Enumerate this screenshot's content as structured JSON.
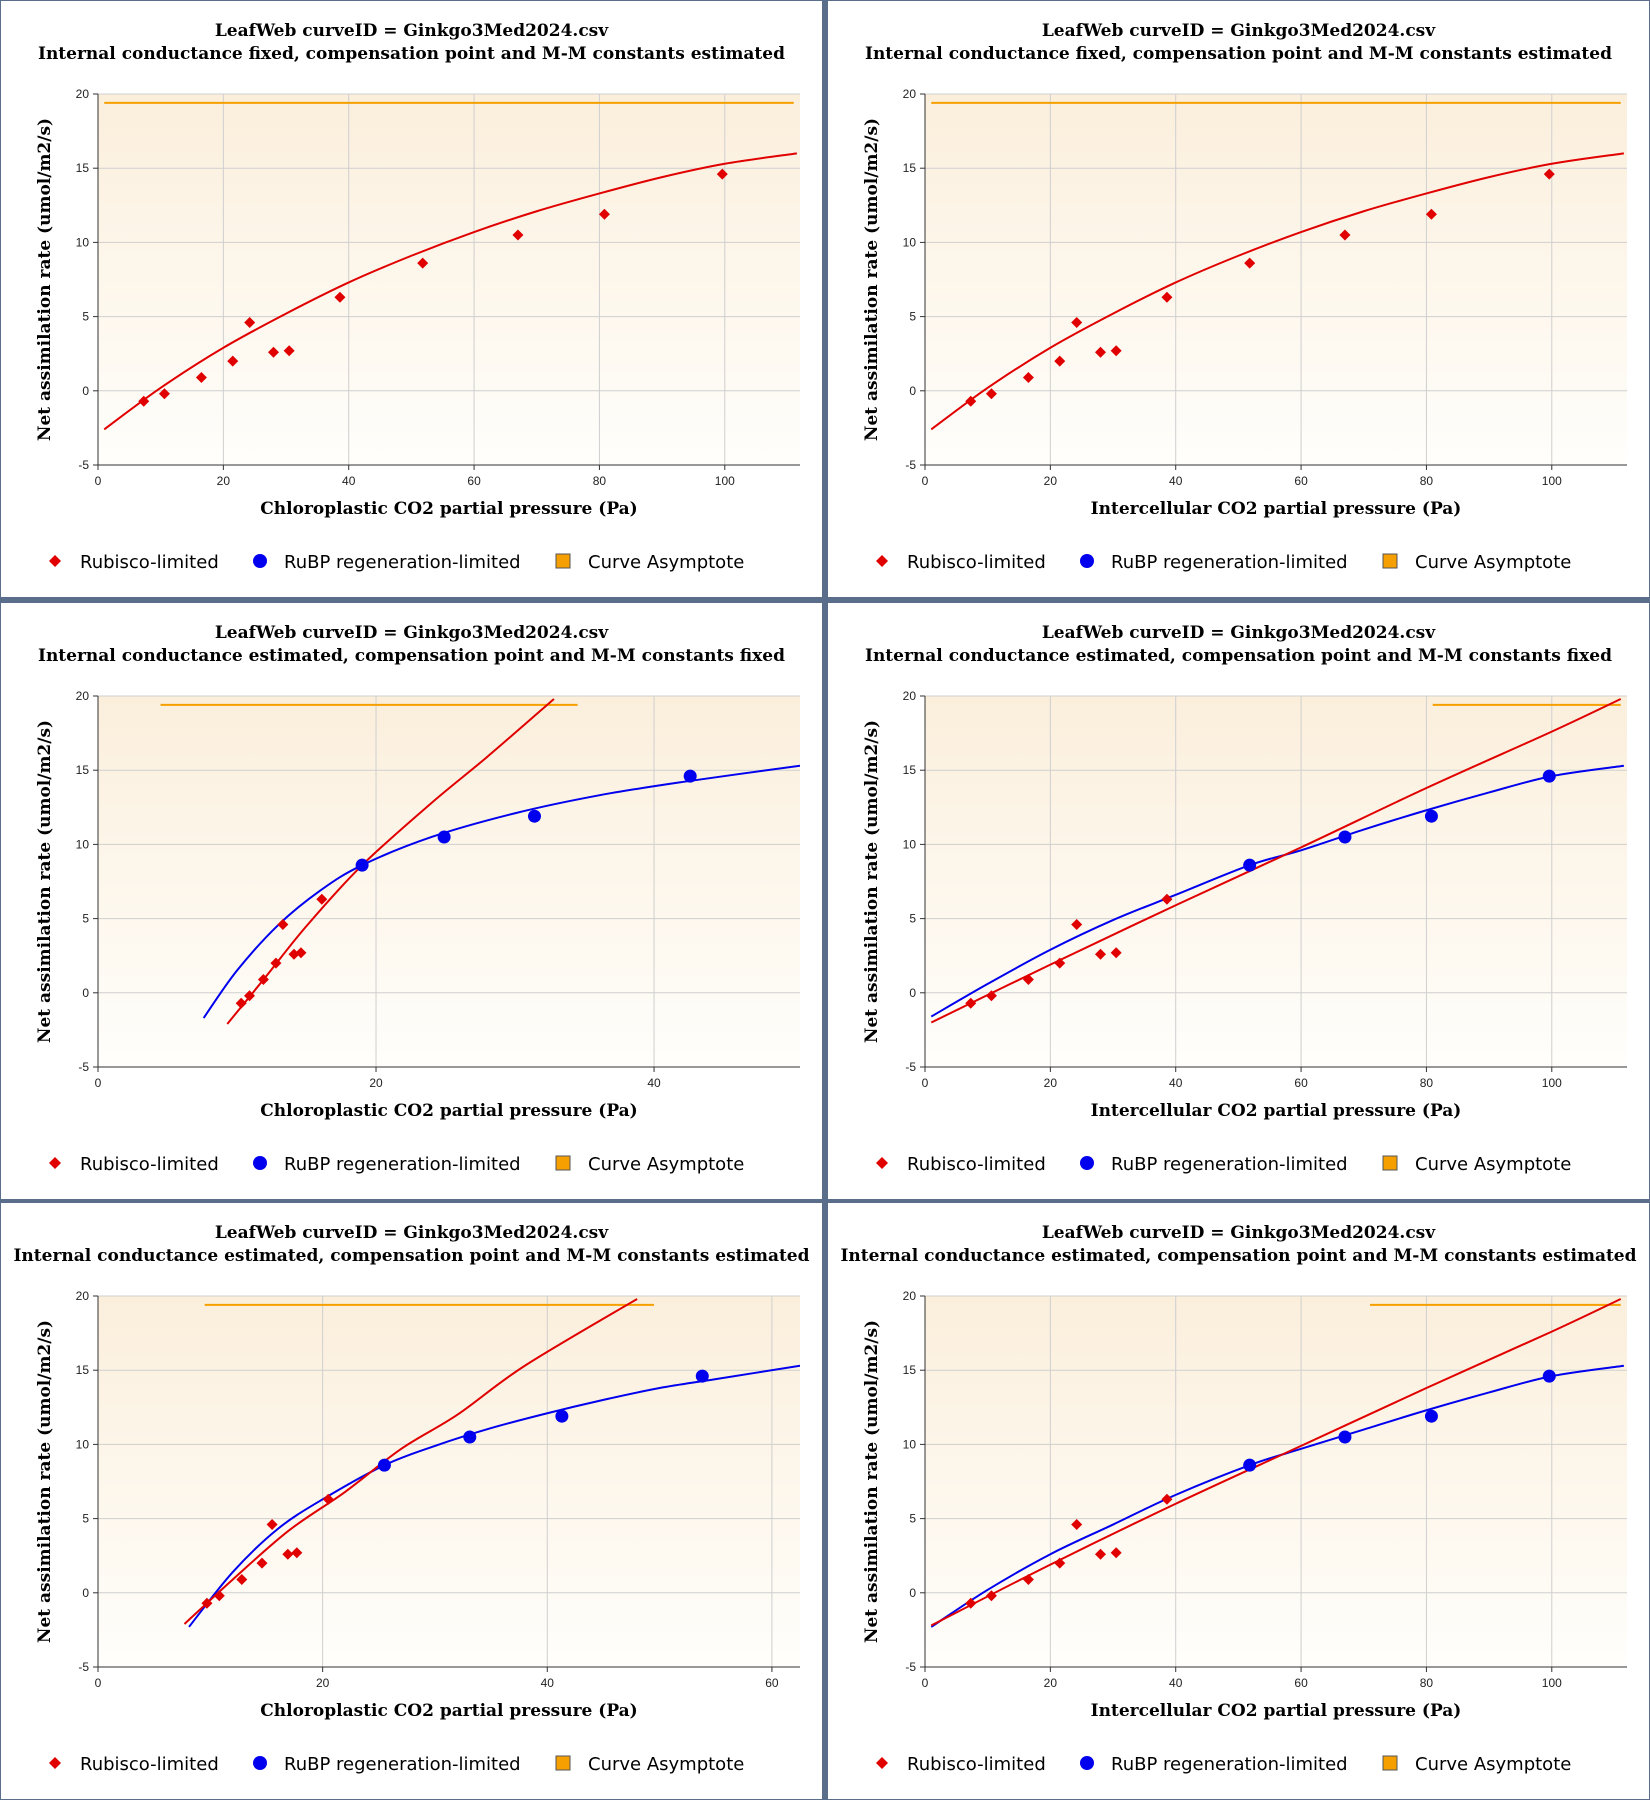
{
  "colors": {
    "rubisco": "#e00000",
    "rubp": "#0000ee",
    "asymptote": "#f5a000",
    "plot_bg_top": "#fbefdc",
    "plot_bg_bottom": "#fffefb",
    "grid": "#cfcfcf"
  },
  "legend": {
    "rubisco_label": "Rubisco-limited",
    "rubp_label": "RuBP regeneration-limited",
    "asymptote_label": "Curve Asymptote"
  },
  "chart_data": [
    {
      "type": "scatter",
      "title": "LeafWeb curveID = Ginkgo3Med2024.csv",
      "subtitle": "Internal conductance fixed, compensation point and M-M constants estimated",
      "xlabel": "Chloroplastic CO2 partial pressure (Pa)",
      "ylabel": "Net assimilation rate (umol/m2/s)",
      "xlim": [
        0,
        112
      ],
      "ylim": [
        -5,
        20
      ],
      "xticks": [
        0,
        20,
        40,
        60,
        80,
        100
      ],
      "yticks": [
        -5,
        0,
        5,
        10,
        15,
        20
      ],
      "grid": true,
      "legend_position": "bottom",
      "rubisco_points": [
        [
          7.3,
          -0.7
        ],
        [
          10.6,
          -0.2
        ],
        [
          16.5,
          0.9
        ],
        [
          21.5,
          2.0
        ],
        [
          24.2,
          4.6
        ],
        [
          28.0,
          2.6
        ],
        [
          30.5,
          2.7
        ],
        [
          38.6,
          6.3
        ],
        [
          51.8,
          8.6
        ],
        [
          67.0,
          10.5
        ],
        [
          80.8,
          11.9
        ],
        [
          99.6,
          14.6
        ]
      ],
      "rubp_points": [],
      "rubisco_curve": [
        [
          1,
          -2.6
        ],
        [
          10,
          0.2
        ],
        [
          20,
          2.9
        ],
        [
          30,
          5.2
        ],
        [
          40,
          7.3
        ],
        [
          50,
          9.1
        ],
        [
          60,
          10.7
        ],
        [
          70,
          12.1
        ],
        [
          80,
          13.3
        ],
        [
          90,
          14.4
        ],
        [
          100,
          15.3
        ],
        [
          111.5,
          16.0
        ]
      ],
      "rubp_curve": [],
      "asymptote": {
        "y": 19.4,
        "x_range": [
          1,
          111
        ]
      }
    },
    {
      "type": "scatter",
      "title": "LeafWeb curveID = Ginkgo3Med2024.csv",
      "subtitle": "Internal conductance fixed, compensation point and M-M constants estimated",
      "xlabel": "Intercellular CO2 partial pressure (Pa)",
      "ylabel": "Net assimilation rate (umol/m2/s)",
      "xlim": [
        0,
        112
      ],
      "ylim": [
        -5,
        20
      ],
      "xticks": [
        0,
        20,
        40,
        60,
        80,
        100
      ],
      "yticks": [
        -5,
        0,
        5,
        10,
        15,
        20
      ],
      "grid": true,
      "legend_position": "bottom",
      "rubisco_points": [
        [
          7.3,
          -0.7
        ],
        [
          10.6,
          -0.2
        ],
        [
          16.5,
          0.9
        ],
        [
          21.5,
          2.0
        ],
        [
          24.2,
          4.6
        ],
        [
          28.0,
          2.6
        ],
        [
          30.5,
          2.7
        ],
        [
          38.6,
          6.3
        ],
        [
          51.8,
          8.6
        ],
        [
          67.0,
          10.5
        ],
        [
          80.8,
          11.9
        ],
        [
          99.6,
          14.6
        ]
      ],
      "rubp_points": [],
      "rubisco_curve": [
        [
          1,
          -2.6
        ],
        [
          10,
          0.2
        ],
        [
          20,
          2.9
        ],
        [
          30,
          5.2
        ],
        [
          40,
          7.3
        ],
        [
          50,
          9.1
        ],
        [
          60,
          10.7
        ],
        [
          70,
          12.1
        ],
        [
          80,
          13.3
        ],
        [
          90,
          14.4
        ],
        [
          100,
          15.3
        ],
        [
          111.5,
          16.0
        ]
      ],
      "rubp_curve": [],
      "asymptote": {
        "y": 19.4,
        "x_range": [
          1,
          111
        ]
      }
    },
    {
      "type": "scatter",
      "title": "LeafWeb curveID = Ginkgo3Med2024.csv",
      "subtitle": "Internal conductance estimated, compensation point and M-M constants fixed",
      "xlabel": "Chloroplastic CO2 partial pressure (Pa)",
      "ylabel": "Net assimilation rate (umol/m2/s)",
      "xlim": [
        0,
        50.5
      ],
      "ylim": [
        -5,
        20
      ],
      "xticks": [
        0,
        20,
        40
      ],
      "yticks": [
        -5,
        0,
        5,
        10,
        15,
        20
      ],
      "grid": true,
      "legend_position": "bottom",
      "rubisco_points": [
        [
          10.3,
          -0.7
        ],
        [
          10.9,
          -0.2
        ],
        [
          11.9,
          0.9
        ],
        [
          12.8,
          2.0
        ],
        [
          13.3,
          4.6
        ],
        [
          14.1,
          2.6
        ],
        [
          14.6,
          2.7
        ],
        [
          16.1,
          6.3
        ]
      ],
      "rubp_points": [
        [
          19.0,
          8.6
        ],
        [
          24.9,
          10.5
        ],
        [
          31.4,
          11.9
        ],
        [
          42.6,
          14.6
        ]
      ],
      "rubisco_curve": [
        [
          9.3,
          -2.1
        ],
        [
          12,
          1.0
        ],
        [
          15,
          4.5
        ],
        [
          19,
          8.6
        ],
        [
          24,
          12.8
        ],
        [
          28,
          15.9
        ],
        [
          32.8,
          19.8
        ]
      ],
      "rubp_curve": [
        [
          7.6,
          -1.7
        ],
        [
          10,
          1.5
        ],
        [
          13,
          4.6
        ],
        [
          16,
          6.9
        ],
        [
          19,
          8.6
        ],
        [
          24,
          10.5
        ],
        [
          30,
          12.1
        ],
        [
          36,
          13.3
        ],
        [
          42,
          14.2
        ],
        [
          50.5,
          15.3
        ]
      ],
      "asymptote": {
        "y": 19.4,
        "x_range": [
          4.5,
          34.5
        ]
      }
    },
    {
      "type": "scatter",
      "title": "LeafWeb curveID = Ginkgo3Med2024.csv",
      "subtitle": "Internal conductance estimated, compensation point and M-M constants fixed",
      "xlabel": "Intercellular CO2 partial pressure (Pa)",
      "ylabel": "Net assimilation rate (umol/m2/s)",
      "xlim": [
        0,
        112
      ],
      "ylim": [
        -5,
        20
      ],
      "xticks": [
        0,
        20,
        40,
        60,
        80,
        100
      ],
      "yticks": [
        -5,
        0,
        5,
        10,
        15,
        20
      ],
      "grid": true,
      "legend_position": "bottom",
      "rubisco_points": [
        [
          7.3,
          -0.7
        ],
        [
          10.6,
          -0.2
        ],
        [
          16.5,
          0.9
        ],
        [
          21.5,
          2.0
        ],
        [
          24.2,
          4.6
        ],
        [
          28.0,
          2.6
        ],
        [
          30.5,
          2.7
        ],
        [
          38.6,
          6.3
        ]
      ],
      "rubp_points": [
        [
          51.8,
          8.6
        ],
        [
          67.0,
          10.5
        ],
        [
          80.8,
          11.9
        ],
        [
          99.6,
          14.6
        ]
      ],
      "rubisco_curve": [
        [
          1,
          -2.0
        ],
        [
          20,
          1.9
        ],
        [
          40,
          5.9
        ],
        [
          60,
          9.8
        ],
        [
          80,
          13.8
        ],
        [
          100,
          17.6
        ],
        [
          111,
          19.8
        ]
      ],
      "rubp_curve": [
        [
          1,
          -1.6
        ],
        [
          10,
          0.6
        ],
        [
          20,
          2.9
        ],
        [
          30,
          4.9
        ],
        [
          40,
          6.6
        ],
        [
          51.8,
          8.6
        ],
        [
          60,
          9.6
        ],
        [
          70,
          11.0
        ],
        [
          80,
          12.3
        ],
        [
          90,
          13.5
        ],
        [
          100,
          14.6
        ],
        [
          111.5,
          15.3
        ]
      ],
      "asymptote": {
        "y": 19.4,
        "x_range": [
          81,
          111
        ]
      }
    },
    {
      "type": "scatter",
      "title": "LeafWeb curveID = Ginkgo3Med2024.csv",
      "subtitle": "Internal conductance estimated, compensation point and M-M constants estimated",
      "xlabel": "Chloroplastic CO2 partial pressure (Pa)",
      "ylabel": "Net assimilation rate (umol/m2/s)",
      "xlim": [
        0,
        62.5
      ],
      "ylim": [
        -5,
        20
      ],
      "xticks": [
        0,
        20,
        40,
        60
      ],
      "yticks": [
        -5,
        0,
        5,
        10,
        15,
        20
      ],
      "grid": true,
      "legend_position": "bottom",
      "rubisco_points": [
        [
          9.7,
          -0.7
        ],
        [
          10.8,
          -0.2
        ],
        [
          12.8,
          0.9
        ],
        [
          14.6,
          2.0
        ],
        [
          15.5,
          4.6
        ],
        [
          16.9,
          2.6
        ],
        [
          17.7,
          2.7
        ],
        [
          20.5,
          6.3
        ]
      ],
      "rubp_points": [
        [
          25.5,
          8.6
        ],
        [
          33.1,
          10.5
        ],
        [
          41.3,
          11.9
        ],
        [
          53.8,
          14.6
        ]
      ],
      "rubisco_curve": [
        [
          7.7,
          -2.1
        ],
        [
          12,
          0.9
        ],
        [
          17,
          4.2
        ],
        [
          22,
          6.8
        ],
        [
          27,
          9.7
        ],
        [
          32,
          12.0
        ],
        [
          38,
          15.3
        ],
        [
          48,
          19.8
        ]
      ],
      "rubp_curve": [
        [
          8.1,
          -2.3
        ],
        [
          12,
          1.4
        ],
        [
          16,
          4.3
        ],
        [
          20,
          6.3
        ],
        [
          25.5,
          8.6
        ],
        [
          30,
          9.9
        ],
        [
          35,
          11.1
        ],
        [
          40,
          12.1
        ],
        [
          45,
          13.0
        ],
        [
          50,
          13.8
        ],
        [
          55,
          14.4
        ],
        [
          62.5,
          15.3
        ]
      ],
      "asymptote": {
        "y": 19.4,
        "x_range": [
          9.5,
          49.5
        ]
      }
    },
    {
      "type": "scatter",
      "title": "LeafWeb curveID = Ginkgo3Med2024.csv",
      "subtitle": "Internal conductance estimated, compensation point and M-M constants estimated",
      "xlabel": "Intercellular CO2 partial pressure (Pa)",
      "ylabel": "Net assimilation rate (umol/m2/s)",
      "xlim": [
        0,
        112
      ],
      "ylim": [
        -5,
        20
      ],
      "xticks": [
        0,
        20,
        40,
        60,
        80,
        100
      ],
      "yticks": [
        -5,
        0,
        5,
        10,
        15,
        20
      ],
      "grid": true,
      "legend_position": "bottom",
      "rubisco_points": [
        [
          7.3,
          -0.7
        ],
        [
          10.6,
          -0.2
        ],
        [
          16.5,
          0.9
        ],
        [
          21.5,
          2.0
        ],
        [
          24.2,
          4.6
        ],
        [
          28.0,
          2.6
        ],
        [
          30.5,
          2.7
        ],
        [
          38.6,
          6.3
        ]
      ],
      "rubp_points": [
        [
          51.8,
          8.6
        ],
        [
          67.0,
          10.5
        ],
        [
          80.8,
          11.9
        ],
        [
          99.6,
          14.6
        ]
      ],
      "rubisco_curve": [
        [
          1,
          -2.2
        ],
        [
          20,
          1.9
        ],
        [
          40,
          6.0
        ],
        [
          60,
          9.9
        ],
        [
          80,
          13.8
        ],
        [
          100,
          17.6
        ],
        [
          111,
          19.8
        ]
      ],
      "rubp_curve": [
        [
          1,
          -2.3
        ],
        [
          10,
          0.2
        ],
        [
          20,
          2.6
        ],
        [
          30,
          4.6
        ],
        [
          40,
          6.6
        ],
        [
          51.8,
          8.6
        ],
        [
          60,
          9.7
        ],
        [
          70,
          11.0
        ],
        [
          80,
          12.3
        ],
        [
          90,
          13.5
        ],
        [
          100,
          14.6
        ],
        [
          111.5,
          15.3
        ]
      ],
      "asymptote": {
        "y": 19.4,
        "x_range": [
          71,
          111
        ]
      }
    }
  ]
}
